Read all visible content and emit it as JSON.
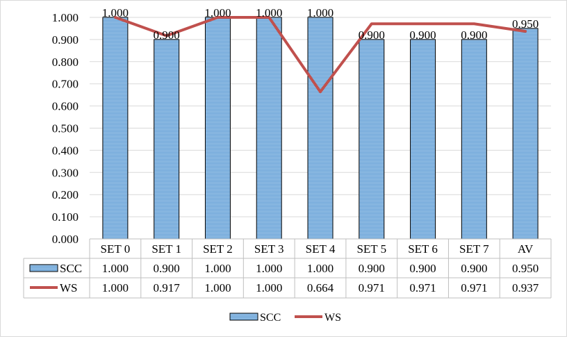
{
  "colors": {
    "bar_fill": "#9DC3E6",
    "bar_stripe": "#5B9BD5",
    "bar_edge": "#000000",
    "line": "#C0504D",
    "grid": "#d9d9d9",
    "table_border": "#bfbfbf"
  },
  "chart_data": {
    "type": "bar",
    "categories": [
      "SET 0",
      "SET 1",
      "SET 2",
      "SET 3",
      "SET 4",
      "SET 5",
      "SET 6",
      "SET 7",
      "AV"
    ],
    "series": [
      {
        "name": "SCC",
        "type": "bar",
        "values": [
          1.0,
          0.9,
          1.0,
          1.0,
          1.0,
          0.9,
          0.9,
          0.9,
          0.95
        ],
        "data_labels": [
          "1.000",
          "0.900",
          "1.000",
          "1.000",
          "1.000",
          "0.900",
          "0.900",
          "0.900",
          "0.950"
        ],
        "table_values": [
          "1.000",
          "0.900",
          "1.000",
          "1.000",
          "1.000",
          "0.900",
          "0.900",
          "0.900",
          "0.950"
        ]
      },
      {
        "name": "WS",
        "type": "line",
        "values": [
          1.0,
          0.917,
          1.0,
          1.0,
          0.664,
          0.971,
          0.971,
          0.971,
          0.937
        ],
        "table_values": [
          "1.000",
          "0.917",
          "1.000",
          "1.000",
          "0.664",
          "0.971",
          "0.971",
          "0.971",
          "0.937"
        ]
      }
    ],
    "ylim": [
      0,
      1.0
    ],
    "yticks": [
      "0.000",
      "0.100",
      "0.200",
      "0.300",
      "0.400",
      "0.500",
      "0.600",
      "0.700",
      "0.800",
      "0.900",
      "1.000"
    ],
    "grid": true,
    "data_table": true,
    "legend_position": "bottom"
  }
}
